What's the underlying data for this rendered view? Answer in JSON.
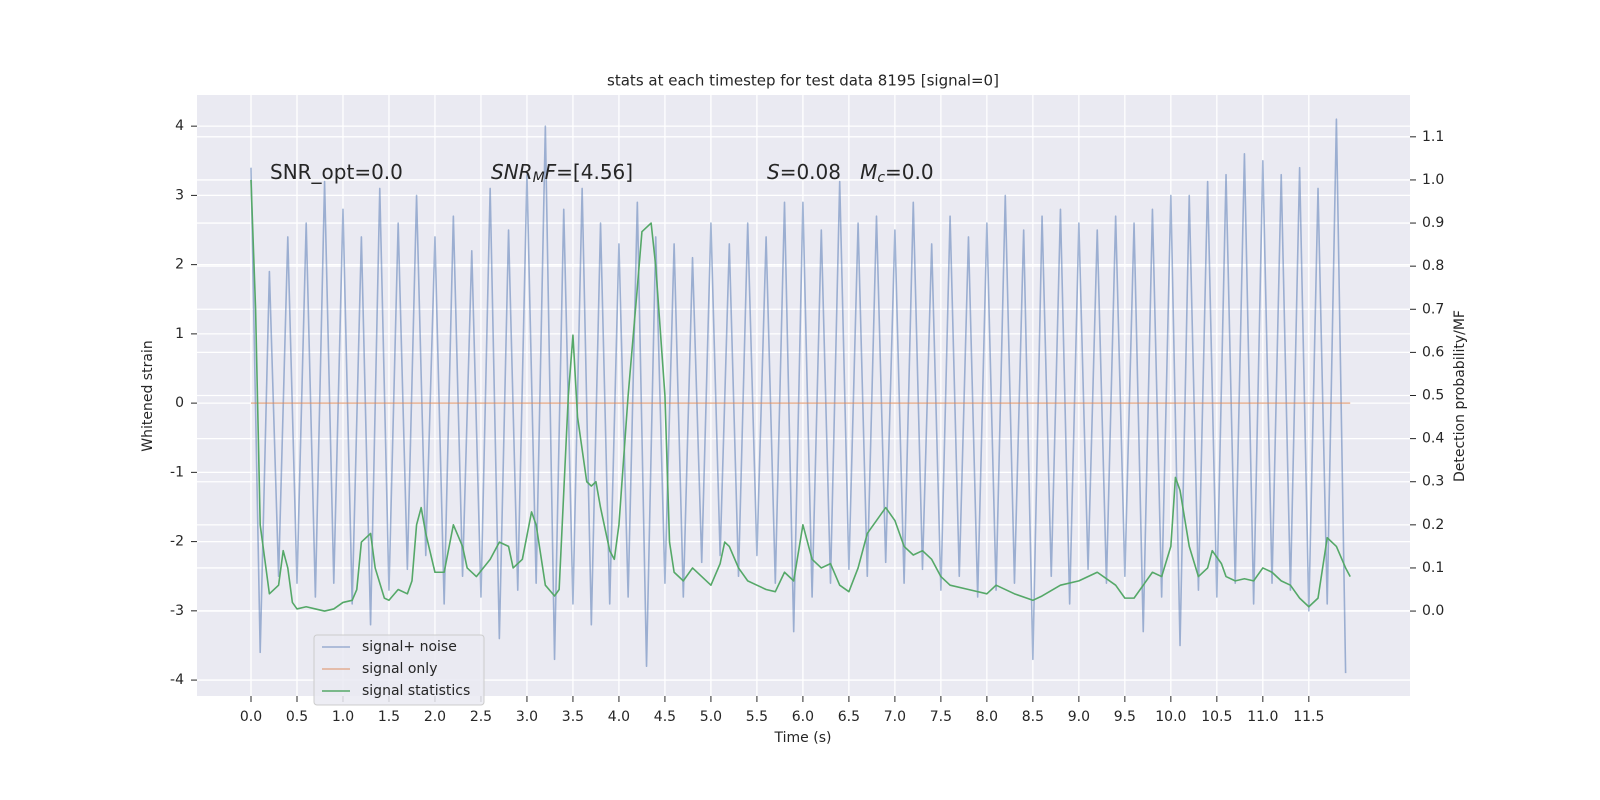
{
  "chart_data": {
    "type": "line",
    "title": "stats at each timestep for test data 8195 [signal=0]",
    "x_label": "Time (s)",
    "y_label": "Whitened strain",
    "y2_label": "Detection probability/MF",
    "xlim": [
      -0.587,
      12.6
    ],
    "ylim": [
      -4.23,
      4.45
    ],
    "y2lim": [
      -0.197,
      1.197
    ],
    "grid": true,
    "background": "#eaeaf2",
    "legend": "lower left",
    "xticks": [
      {
        "value": 0,
        "label": "0.0"
      },
      0.5,
      {
        "value": 1,
        "label": "1.0"
      },
      1.5,
      {
        "value": 2,
        "label": "2.0"
      },
      2.5,
      {
        "value": 3,
        "label": "3.0"
      },
      3.5,
      {
        "value": 4,
        "label": "4.0"
      },
      4.5,
      {
        "value": 5,
        "label": "5.0"
      },
      5.5,
      {
        "value": 6,
        "label": "6.0"
      },
      6.5,
      {
        "value": 7,
        "label": "7.0"
      },
      7.5,
      {
        "value": 8,
        "label": "8.0"
      },
      8.5,
      {
        "value": 9,
        "label": "9.0"
      },
      9.5,
      {
        "value": 10,
        "label": "10.0"
      },
      10.5,
      {
        "value": 11,
        "label": "11.0"
      },
      11.5
    ],
    "yticks": [
      -4,
      -3,
      -2,
      -1,
      0,
      1,
      2,
      3,
      4
    ],
    "y2ticks": [
      {
        "value": 0,
        "label": "0.0"
      },
      0.1,
      0.2,
      0.3,
      0.4,
      0.5,
      0.6,
      0.7,
      0.8,
      0.9,
      {
        "value": 1,
        "label": "1.0"
      },
      1.1
    ],
    "annotations": [
      [
        {
          "text": "SNR_opt=0.0"
        }
      ],
      [
        {
          "text": "SNR",
          "style": "italic"
        },
        {
          "text": "M",
          "style": "sub-italic"
        },
        {
          "text": "F",
          "style": "italic"
        },
        {
          "text": "=[4.56]"
        }
      ],
      [
        {
          "text": "S",
          "style": "italic"
        },
        {
          "text": "=0.08   "
        },
        {
          "text": "M",
          "style": "italic"
        },
        {
          "text": "c",
          "style": "sub-italic"
        },
        {
          "text": "=0.0"
        }
      ]
    ],
    "series": [
      {
        "name": "signal+ noise",
        "color": "#4c72b0",
        "opacity": 0.5,
        "x": [
          0.0,
          0.1,
          0.2,
          0.3,
          0.4,
          0.5,
          0.6,
          0.7,
          0.8,
          0.9,
          1.0,
          1.1,
          1.2,
          1.3,
          1.4,
          1.5,
          1.6,
          1.7,
          1.8,
          1.9,
          2.0,
          2.1,
          2.2,
          2.3,
          2.4,
          2.5,
          2.6,
          2.7,
          2.8,
          2.9,
          3.0,
          3.1,
          3.2,
          3.3,
          3.4,
          3.5,
          3.6,
          3.7,
          3.8,
          3.9,
          4.0,
          4.1,
          4.2,
          4.3,
          4.4,
          4.5,
          4.6,
          4.7,
          4.8,
          4.9,
          5.0,
          5.1,
          5.2,
          5.3,
          5.4,
          5.5,
          5.6,
          5.7,
          5.8,
          5.9,
          6.0,
          6.1,
          6.2,
          6.3,
          6.4,
          6.5,
          6.6,
          6.7,
          6.8,
          6.9,
          7.0,
          7.1,
          7.2,
          7.3,
          7.4,
          7.5,
          7.6,
          7.7,
          7.8,
          7.9,
          8.0,
          8.1,
          8.2,
          8.3,
          8.4,
          8.5,
          8.6,
          8.7,
          8.8,
          8.9,
          9.0,
          9.1,
          9.2,
          9.3,
          9.4,
          9.5,
          9.6,
          9.7,
          9.8,
          9.9,
          10.0,
          10.1,
          10.2,
          10.3,
          10.4,
          10.5,
          10.6,
          10.7,
          10.8,
          10.9,
          11.0,
          11.1,
          11.2,
          11.3,
          11.4,
          11.5,
          11.6,
          11.7,
          11.8,
          11.9
        ],
        "values": [
          3.4,
          -3.6,
          1.9,
          -2.5,
          2.4,
          -2.6,
          2.6,
          -2.8,
          3.2,
          -2.6,
          2.8,
          -2.9,
          2.4,
          -3.2,
          3.1,
          -2.7,
          2.6,
          -2.4,
          3.0,
          -2.2,
          2.4,
          -2.9,
          2.7,
          -2.5,
          2.2,
          -2.8,
          3.1,
          -3.4,
          2.5,
          -2.7,
          3.3,
          -2.6,
          4.0,
          -3.7,
          2.8,
          -2.9,
          3.1,
          -3.2,
          2.6,
          -2.9,
          2.3,
          -2.8,
          2.9,
          -3.8,
          2.4,
          -2.6,
          2.3,
          -2.8,
          2.1,
          -2.3,
          2.6,
          -2.2,
          2.3,
          -2.5,
          2.6,
          -2.2,
          2.4,
          -2.6,
          2.9,
          -3.3,
          2.9,
          -2.8,
          2.5,
          -2.6,
          3.2,
          -2.4,
          2.6,
          -2.5,
          2.7,
          -2.3,
          2.5,
          -2.6,
          2.9,
          -2.4,
          2.3,
          -2.7,
          2.7,
          -2.5,
          2.4,
          -2.8,
          2.6,
          -2.7,
          3.0,
          -2.6,
          2.5,
          -3.7,
          2.7,
          -2.5,
          2.8,
          -2.9,
          2.6,
          -2.4,
          2.5,
          -2.6,
          2.7,
          -2.5,
          2.6,
          -3.3,
          2.8,
          -2.8,
          3.0,
          -3.5,
          3.0,
          -2.7,
          3.2,
          -2.8,
          3.3,
          -2.6,
          3.6,
          -2.9,
          3.5,
          -2.6,
          3.3,
          -2.7,
          3.4,
          -3.0,
          3.1,
          -2.9,
          4.1,
          -3.9
        ]
      },
      {
        "name": "signal only",
        "color": "#dd8452",
        "opacity": 0.6,
        "x": [
          0,
          11.95
        ],
        "values": [
          0,
          0
        ]
      },
      {
        "name": "signal statistics",
        "color": "#55a868",
        "opacity": 1,
        "axis": "y2",
        "x": [
          0.0,
          0.05,
          0.1,
          0.15,
          0.2,
          0.3,
          0.35,
          0.4,
          0.45,
          0.5,
          0.6,
          0.7,
          0.8,
          0.9,
          1.0,
          1.1,
          1.15,
          1.2,
          1.3,
          1.35,
          1.45,
          1.5,
          1.6,
          1.7,
          1.75,
          1.8,
          1.85,
          1.9,
          2.0,
          2.1,
          2.2,
          2.3,
          2.35,
          2.45,
          2.6,
          2.7,
          2.8,
          2.85,
          2.95,
          3.05,
          3.1,
          3.2,
          3.3,
          3.35,
          3.45,
          3.5,
          3.55,
          3.65,
          3.7,
          3.75,
          3.8,
          3.9,
          3.95,
          4.0,
          4.1,
          4.2,
          4.25,
          4.35,
          4.4,
          4.5,
          4.55,
          4.6,
          4.7,
          4.8,
          4.9,
          5.0,
          5.1,
          5.15,
          5.2,
          5.3,
          5.4,
          5.5,
          5.6,
          5.7,
          5.8,
          5.9,
          6.0,
          6.1,
          6.2,
          6.3,
          6.4,
          6.5,
          6.6,
          6.7,
          6.8,
          6.9,
          7.0,
          7.1,
          7.2,
          7.3,
          7.4,
          7.5,
          7.6,
          7.8,
          8.0,
          8.1,
          8.3,
          8.5,
          8.6,
          8.8,
          9.0,
          9.2,
          9.4,
          9.5,
          9.6,
          9.8,
          9.9,
          10.0,
          10.05,
          10.1,
          10.2,
          10.3,
          10.4,
          10.45,
          10.55,
          10.6,
          10.7,
          10.8,
          10.9,
          11.0,
          11.1,
          11.2,
          11.3,
          11.4,
          11.5,
          11.6,
          11.7,
          11.8,
          11.9,
          11.95
        ],
        "values": [
          1.0,
          0.7,
          0.2,
          0.12,
          0.04,
          0.06,
          0.14,
          0.1,
          0.02,
          0.005,
          0.01,
          0.005,
          0.0,
          0.005,
          0.02,
          0.025,
          0.05,
          0.16,
          0.18,
          0.1,
          0.03,
          0.025,
          0.05,
          0.04,
          0.07,
          0.2,
          0.24,
          0.18,
          0.09,
          0.09,
          0.2,
          0.15,
          0.1,
          0.08,
          0.12,
          0.16,
          0.15,
          0.1,
          0.12,
          0.23,
          0.2,
          0.06,
          0.035,
          0.05,
          0.5,
          0.64,
          0.45,
          0.3,
          0.29,
          0.3,
          0.24,
          0.14,
          0.12,
          0.2,
          0.5,
          0.75,
          0.88,
          0.9,
          0.8,
          0.5,
          0.16,
          0.09,
          0.07,
          0.1,
          0.08,
          0.06,
          0.11,
          0.16,
          0.15,
          0.1,
          0.07,
          0.06,
          0.05,
          0.045,
          0.09,
          0.07,
          0.2,
          0.12,
          0.1,
          0.11,
          0.06,
          0.045,
          0.1,
          0.18,
          0.21,
          0.24,
          0.21,
          0.15,
          0.13,
          0.14,
          0.12,
          0.08,
          0.06,
          0.05,
          0.04,
          0.06,
          0.04,
          0.025,
          0.035,
          0.06,
          0.07,
          0.09,
          0.06,
          0.03,
          0.03,
          0.09,
          0.08,
          0.15,
          0.31,
          0.28,
          0.15,
          0.08,
          0.1,
          0.14,
          0.11,
          0.08,
          0.07,
          0.075,
          0.07,
          0.1,
          0.09,
          0.07,
          0.06,
          0.03,
          0.01,
          0.03,
          0.17,
          0.15,
          0.1,
          0.08
        ]
      }
    ]
  }
}
